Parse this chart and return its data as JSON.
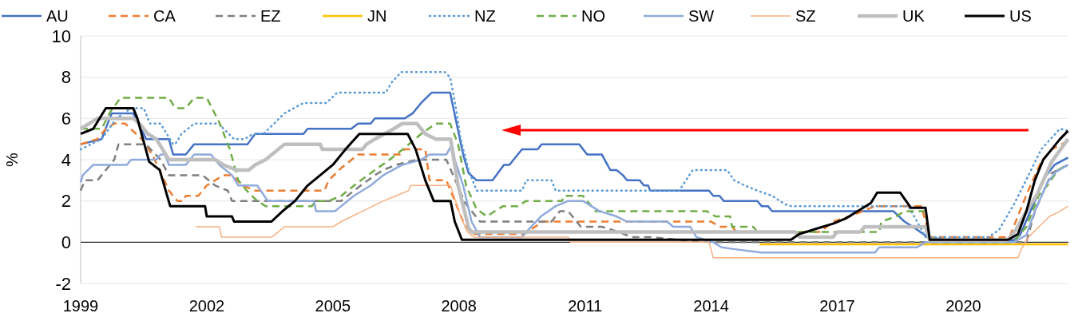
{
  "chart_data": {
    "type": "line",
    "ylabel": "%",
    "xlim": [
      1999,
      2022.5
    ],
    "xticks": [
      1999,
      2002,
      2005,
      2008,
      2011,
      2014,
      2017,
      2020
    ],
    "ylim": [
      -2,
      10
    ],
    "yticks": [
      -2,
      0,
      2,
      4,
      6,
      8,
      10
    ],
    "grid": "y",
    "legend": "top",
    "series": [
      {
        "name": "AU",
        "color": "#4472c4",
        "line_style": "solid",
        "x": [
          1999.0,
          1999.5,
          1999.74,
          2000.25,
          2000.56,
          2001.1,
          2001.2,
          2001.5,
          2001.7,
          2002.97,
          2003.15,
          2004.3,
          2004.4,
          2005.44,
          2005.6,
          2005.9,
          2006.0,
          2006.71,
          2006.9,
          2007.1,
          2007.35,
          2007.79,
          2008.1,
          2008.23,
          2008.42,
          2008.8,
          2009.07,
          2009.2,
          2009.5,
          2009.87,
          2009.97,
          2010.86,
          2011.05,
          2011.4,
          2011.6,
          2011.75,
          2011.9,
          2012.0,
          2012.3,
          2012.4,
          2012.5,
          2012.55,
          2013.95,
          2014.05,
          2014.2,
          2014.3,
          2015.1,
          2015.2,
          2015.35,
          2015.45,
          2018.34,
          2018.6,
          2018.8,
          2019.15,
          2019.6,
          2021.2,
          2021.35,
          2021.7,
          2021.92,
          2022.17,
          2022.49
        ],
        "values": [
          4.75,
          5.0,
          6.25,
          6.25,
          5.0,
          5.0,
          4.25,
          4.25,
          4.75,
          4.75,
          5.25,
          5.25,
          5.5,
          5.5,
          5.75,
          5.75,
          6.0,
          6.0,
          6.25,
          6.75,
          7.25,
          7.25,
          4.25,
          3.35,
          3.0,
          3.0,
          3.75,
          3.75,
          4.5,
          4.5,
          4.75,
          4.75,
          4.25,
          4.25,
          3.5,
          3.5,
          3.25,
          3.0,
          3.0,
          2.75,
          2.75,
          2.5,
          2.5,
          2.25,
          2.25,
          2.0,
          2.0,
          1.75,
          1.75,
          1.5,
          1.5,
          1.0,
          0.75,
          0.25,
          0.1,
          0.1,
          0.35,
          2.0,
          3.1,
          3.75,
          4.1
        ]
      },
      {
        "name": "CA",
        "color": "#ed7d31",
        "line_style": "dashed",
        "x": [
          1999.0,
          1999.4,
          1999.6,
          1999.8,
          2000.06,
          2000.45,
          2000.7,
          2000.88,
          2001.1,
          2001.3,
          2001.45,
          2001.5,
          2001.8,
          2002.0,
          2002.4,
          2002.6,
          2002.85,
          2003.15,
          2003.3,
          2004.8,
          2004.9,
          2005.2,
          2005.6,
          2006.6,
          2006.7,
          2007.2,
          2007.3,
          2007.7,
          2008.1,
          2008.3,
          2009.55,
          2009.7,
          2010.0,
          2014.0,
          2014.2,
          2014.5,
          2014.6,
          2016.6,
          2016.9,
          2017.3,
          2017.6,
          2017.9,
          2019.0,
          2019.2,
          2021.1,
          2021.5,
          2021.85,
          2022.1,
          2022.49
        ],
        "values": [
          4.75,
          5.0,
          5.5,
          5.75,
          5.75,
          5.0,
          4.25,
          3.5,
          2.5,
          2.0,
          2.0,
          2.25,
          2.25,
          2.75,
          3.25,
          3.25,
          2.75,
          2.5,
          2.5,
          2.5,
          3.0,
          3.6,
          4.25,
          4.25,
          4.5,
          4.5,
          3.0,
          3.0,
          1.0,
          0.4,
          0.4,
          0.6,
          1.0,
          1.0,
          0.75,
          0.75,
          0.5,
          0.5,
          1.0,
          1.25,
          1.5,
          1.75,
          1.75,
          0.25,
          0.25,
          2.3,
          3.9,
          4.5,
          4.9
        ]
      },
      {
        "name": "EZ",
        "color": "#7f7f7f",
        "line_style": "dashed",
        "x": [
          1999.0,
          1999.1,
          1999.4,
          1999.8,
          1999.9,
          2000.55,
          2000.9,
          2001.1,
          2001.9,
          2002.2,
          2002.5,
          2002.6,
          2005.2,
          2005.5,
          2006.0,
          2006.2,
          2006.5,
          2007.0,
          2007.7,
          2008.15,
          2008.5,
          2009.4,
          2010.2,
          2010.4,
          2010.6,
          2010.9,
          2011.4,
          2011.8,
          2012.1,
          2012.6,
          2013.5,
          2014.2,
          2021.5,
          2021.7,
          2022.1,
          2022.49
        ],
        "values": [
          2.5,
          3.0,
          3.0,
          4.0,
          4.75,
          4.75,
          4.0,
          3.25,
          3.25,
          2.75,
          2.5,
          2.0,
          2.0,
          2.5,
          3.25,
          3.5,
          3.75,
          4.0,
          4.0,
          1.9,
          1.0,
          1.0,
          1.0,
          1.5,
          1.5,
          0.75,
          0.75,
          0.5,
          0.25,
          0.25,
          0.05,
          0.0,
          0.0,
          1.5,
          3.35,
          3.75
        ]
      },
      {
        "name": "JN",
        "color": "#ffc000",
        "line_style": "solid",
        "x": [
          2015.15,
          2022.49
        ],
        "values": [
          -0.1,
          -0.1
        ]
      },
      {
        "name": "NZ",
        "color": "#5b9bd5",
        "line_style": "dotted",
        "x": [
          1999.0,
          1999.5,
          1999.85,
          2000.2,
          2000.5,
          2000.65,
          2000.9,
          2001.2,
          2001.25,
          2001.4,
          2001.7,
          2002.3,
          2002.4,
          2002.65,
          2002.9,
          2003.1,
          2003.35,
          2003.6,
          2003.85,
          2004.3,
          2004.85,
          2005.1,
          2006.26,
          2006.4,
          2006.63,
          2007.66,
          2007.79,
          2007.92,
          2008.04,
          2008.23,
          2008.42,
          2009.5,
          2009.6,
          2010.2,
          2010.3,
          2013.24,
          2013.56,
          2014.38,
          2014.55,
          2014.8,
          2015.1,
          2015.45,
          2015.75,
          2015.9,
          2018.69,
          2018.9,
          2019.1,
          2020.6,
          2020.85,
          2021.22,
          2021.54,
          2021.85,
          2022.3,
          2022.49
        ],
        "values": [
          4.5,
          5.0,
          6.0,
          6.5,
          6.5,
          5.75,
          5.75,
          4.75,
          4.75,
          5.25,
          5.75,
          5.75,
          5.5,
          5.0,
          5.0,
          5.25,
          5.25,
          5.75,
          6.25,
          6.75,
          6.75,
          7.25,
          7.25,
          7.75,
          8.25,
          8.25,
          8.0,
          6.6,
          5.0,
          3.5,
          2.5,
          2.5,
          3.0,
          3.0,
          2.5,
          2.5,
          3.5,
          3.5,
          3.0,
          2.75,
          2.5,
          2.25,
          1.85,
          1.75,
          1.75,
          1.0,
          0.25,
          0.25,
          0.6,
          1.9,
          3.2,
          4.5,
          5.5,
          5.4
        ]
      },
      {
        "name": "NO",
        "color": "#70ad47",
        "line_style": "dashed",
        "x": [
          1999.0,
          1999.5,
          1999.7,
          1999.95,
          2001.1,
          2001.25,
          2001.5,
          2001.7,
          2002.0,
          2002.3,
          2002.55,
          2002.75,
          2002.95,
          2003.2,
          2003.4,
          2004.5,
          2004.6,
          2004.9,
          2005.2,
          2005.6,
          2006.0,
          2006.35,
          2006.6,
          2006.9,
          2007.1,
          2007.45,
          2007.79,
          2007.98,
          2008.17,
          2008.42,
          2008.67,
          2008.85,
          2009.05,
          2009.4,
          2009.6,
          2010.45,
          2010.5,
          2010.95,
          2011.25,
          2013.9,
          2014.1,
          2014.45,
          2014.5,
          2015.0,
          2015.1,
          2018.0,
          2018.05,
          2018.4,
          2018.6,
          2019.1,
          2019.2,
          2019.5,
          2021.2,
          2021.5,
          2021.8,
          2022.0,
          2022.25,
          2022.49
        ],
        "values": [
          5.5,
          5.5,
          6.3,
          7.0,
          7.0,
          6.5,
          6.5,
          7.0,
          7.0,
          5.8,
          4.5,
          3.0,
          2.5,
          2.0,
          1.75,
          1.75,
          2.0,
          2.0,
          2.25,
          2.9,
          3.5,
          4.0,
          4.4,
          4.9,
          5.25,
          5.75,
          5.75,
          4.75,
          2.75,
          1.6,
          1.25,
          1.5,
          1.75,
          1.75,
          2.0,
          2.0,
          2.25,
          2.25,
          1.5,
          1.5,
          1.25,
          1.25,
          0.75,
          0.75,
          0.5,
          0.5,
          1.0,
          1.25,
          1.5,
          1.5,
          0.25,
          0.0,
          0.0,
          0.75,
          2.3,
          2.75,
          3.5,
          3.75
        ]
      },
      {
        "name": "SW",
        "color": "#8faadc",
        "line_style": "solid",
        "x": [
          1999.0,
          1999.05,
          1999.3,
          2000.1,
          2000.2,
          2000.8,
          2000.9,
          2001.0,
          2001.1,
          2001.5,
          2001.7,
          2002.1,
          2002.3,
          2002.6,
          2002.75,
          2003.2,
          2003.45,
          2004.55,
          2004.6,
          2005.05,
          2005.2,
          2005.5,
          2005.9,
          2006.2,
          2006.65,
          2007.1,
          2007.3,
          2007.7,
          2007.84,
          2007.9,
          2008.1,
          2008.3,
          2008.5,
          2009.5,
          2009.65,
          2009.95,
          2010.3,
          2010.6,
          2010.95,
          2011.15,
          2011.35,
          2011.75,
          2012.0,
          2012.95,
          2013.1,
          2013.5,
          2013.65,
          2014.05,
          2014.25,
          2014.6,
          2015.2,
          2017.9,
          2018.0,
          2018.9,
          2019.1,
          2021.2,
          2021.5,
          2021.7,
          2022.0,
          2022.2,
          2022.49
        ],
        "values": [
          2.9,
          3.25,
          3.75,
          3.75,
          4.0,
          4.0,
          4.25,
          4.25,
          3.75,
          3.75,
          4.25,
          4.25,
          3.75,
          3.25,
          2.75,
          2.75,
          2.0,
          2.0,
          1.5,
          1.5,
          1.75,
          2.25,
          2.75,
          3.25,
          3.75,
          4.0,
          4.25,
          4.25,
          4.75,
          4.0,
          2.75,
          1.0,
          0.25,
          0.25,
          0.6,
          1.25,
          1.75,
          2.0,
          2.0,
          1.75,
          1.5,
          1.25,
          1.0,
          1.0,
          0.75,
          0.75,
          0.25,
          0.0,
          -0.25,
          -0.35,
          -0.5,
          -0.5,
          -0.25,
          -0.25,
          0.0,
          0.0,
          0.35,
          1.5,
          2.9,
          3.4,
          3.75
        ]
      },
      {
        "name": "SZ",
        "color": "#f4b183",
        "line_style": "solid",
        "x": [
          2001.74,
          2002.3,
          2002.35,
          2003.55,
          2003.7,
          2003.85,
          2005.0,
          2005.2,
          2005.45,
          2005.7,
          2005.95,
          2006.2,
          2006.5,
          2006.8,
          2006.85,
          2007.8,
          2008.05,
          2008.2,
          2008.35,
          2010.6,
          2010.65,
          2013.95,
          2014.05,
          2021.3,
          2021.4,
          2021.55,
          2021.8,
          2022.05,
          2022.3,
          2022.49
        ],
        "values": [
          0.75,
          0.75,
          0.25,
          0.25,
          0.5,
          0.75,
          0.75,
          1.0,
          1.25,
          1.5,
          1.75,
          2.0,
          2.25,
          2.5,
          2.75,
          2.75,
          1.2,
          0.5,
          0.25,
          0.25,
          0.0,
          0.0,
          -0.75,
          -0.75,
          -0.25,
          0.25,
          0.75,
          1.25,
          1.5,
          1.75
        ]
      },
      {
        "name": "UK",
        "color": "#bfbfbf",
        "line_style": "solid",
        "x": [
          1999.0,
          1999.2,
          1999.4,
          2000.25,
          2000.4,
          2000.6,
          2000.8,
          2001.1,
          2002.2,
          2002.4,
          2002.7,
          2003.0,
          2003.15,
          2003.4,
          2003.55,
          2003.85,
          2004.7,
          2004.75,
          2005.7,
          2005.8,
          2006.0,
          2006.45,
          2006.65,
          2007.0,
          2007.2,
          2007.45,
          2007.8,
          2007.98,
          2008.23,
          2008.3,
          2016.0,
          2016.1,
          2016.9,
          2017.0,
          2017.55,
          2017.65,
          2019.1,
          2019.2,
          2021.05,
          2021.25,
          2021.5,
          2021.75,
          2022.1,
          2022.49
        ],
        "values": [
          5.5,
          5.75,
          6.0,
          6.0,
          5.75,
          5.25,
          5.0,
          4.0,
          4.0,
          3.75,
          3.5,
          3.5,
          3.75,
          4.0,
          4.25,
          4.75,
          4.75,
          4.5,
          4.5,
          4.75,
          5.0,
          5.5,
          5.75,
          5.75,
          5.25,
          5.0,
          5.0,
          2.75,
          0.7,
          0.5,
          0.5,
          0.25,
          0.25,
          0.5,
          0.5,
          0.75,
          0.75,
          0.1,
          0.1,
          0.6,
          1.5,
          2.3,
          3.9,
          5.0
        ]
      },
      {
        "name": "US",
        "color": "#000000",
        "line_style": "solid",
        "x": [
          1999.0,
          1999.3,
          1999.45,
          1999.6,
          2000.25,
          2000.35,
          2000.63,
          2000.88,
          2001.13,
          2001.96,
          2002.0,
          2002.6,
          2002.65,
          2003.54,
          2003.8,
          2004.1,
          2004.4,
          2004.7,
          2005.0,
          2005.3,
          2005.63,
          2006.78,
          2006.97,
          2007.2,
          2007.4,
          2007.8,
          2007.9,
          2008.07,
          2015.9,
          2016.1,
          2016.5,
          2016.9,
          2017.2,
          2017.4,
          2017.6,
          2017.8,
          2017.95,
          2018.5,
          2018.75,
          2019.1,
          2019.2,
          2021.07,
          2021.3,
          2021.5,
          2021.7,
          2021.9,
          2022.1,
          2022.3,
          2022.49
        ],
        "values": [
          5.25,
          5.5,
          6.0,
          6.5,
          6.5,
          6.0,
          3.9,
          3.5,
          1.75,
          1.75,
          1.25,
          1.25,
          1.0,
          1.0,
          1.5,
          2.0,
          2.75,
          3.25,
          3.75,
          4.5,
          5.25,
          5.25,
          4.5,
          3.0,
          2.0,
          2.0,
          1.0,
          0.12,
          0.12,
          0.4,
          0.65,
          0.9,
          1.15,
          1.4,
          1.65,
          1.9,
          2.4,
          2.4,
          1.67,
          1.67,
          0.12,
          0.12,
          0.4,
          1.5,
          3.0,
          4.0,
          4.5,
          5.0,
          5.4
        ]
      }
    ]
  }
}
